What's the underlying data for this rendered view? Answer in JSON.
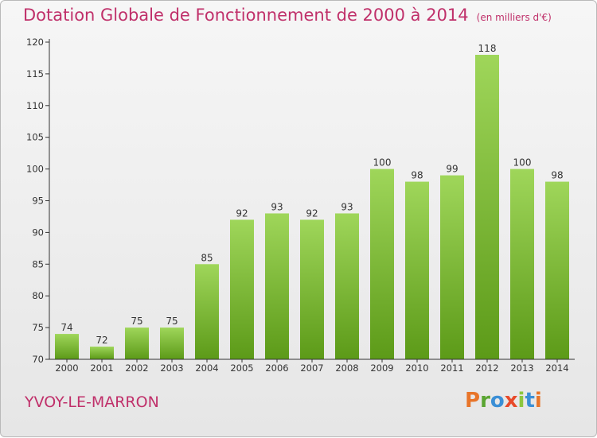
{
  "header": {
    "title": "Dotation Globale de Fonctionnement de 2000 à 2014",
    "unit": "(en milliers d'€)"
  },
  "footer": {
    "place": "YVOY-LE-MARRON",
    "brand": "Proxiti",
    "brand_colors": [
      "#e8752a",
      "#5aa532",
      "#3b8fd6",
      "#e84a2a",
      "#8cc63f",
      "#3b8fd6",
      "#e8752a"
    ]
  },
  "colors": {
    "title": "#c0306a",
    "bar_top": "#9fd65a",
    "bar_bottom": "#5c9a18",
    "axis": "#333333"
  },
  "chart_data": {
    "type": "bar",
    "categories": [
      "2000",
      "2001",
      "2002",
      "2003",
      "2004",
      "2005",
      "2006",
      "2007",
      "2008",
      "2009",
      "2010",
      "2011",
      "2012",
      "2013",
      "2014"
    ],
    "values": [
      74,
      72,
      75,
      75,
      85,
      92,
      93,
      92,
      93,
      100,
      98,
      99,
      118,
      100,
      98
    ],
    "ylim": [
      70,
      120
    ],
    "yticks": [
      70,
      75,
      80,
      85,
      90,
      95,
      100,
      105,
      110,
      115,
      120
    ],
    "grid": false,
    "data_labels": true
  }
}
